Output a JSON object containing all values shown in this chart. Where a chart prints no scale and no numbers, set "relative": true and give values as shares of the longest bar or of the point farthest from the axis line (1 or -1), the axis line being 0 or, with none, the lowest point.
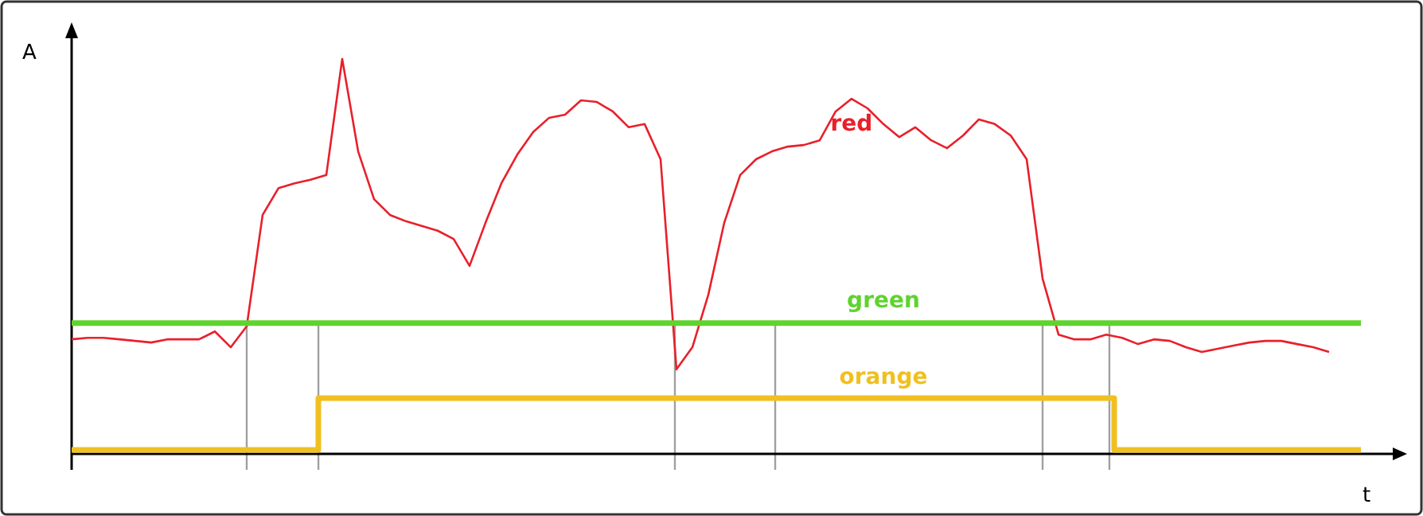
{
  "chart_data": {
    "type": "line",
    "relative": true,
    "xlabel": "t",
    "ylabel": "A",
    "line_style": "solid",
    "categories": [
      null,
      null,
      null,
      null,
      null,
      null,
      null,
      null,
      null,
      null,
      null,
      null,
      null,
      null,
      null,
      null,
      null,
      null,
      null,
      null,
      null,
      null,
      null,
      null,
      null,
      null,
      null,
      null,
      null,
      null,
      null,
      null,
      null,
      null,
      null,
      null,
      null,
      null,
      null,
      null,
      null,
      null,
      null,
      null,
      null,
      null,
      null,
      null,
      null,
      null,
      null,
      null,
      null,
      null,
      null,
      null,
      null,
      null,
      null,
      null,
      null,
      null,
      null,
      null,
      null,
      null,
      null,
      null,
      null,
      null,
      null,
      null,
      null,
      null,
      null,
      null,
      null,
      null,
      null,
      null,
      null,
      null
    ],
    "series": [
      {
        "name": "red",
        "color": "#e8202a",
        "values": [
          0.29,
          0.294,
          0.294,
          0.29,
          0.286,
          0.282,
          0.29,
          0.29,
          0.29,
          0.31,
          0.27,
          0.323,
          0.605,
          0.673,
          0.685,
          0.694,
          0.706,
          1,
          0.766,
          0.645,
          0.605,
          0.589,
          0.577,
          0.565,
          0.544,
          0.476,
          0.585,
          0.685,
          0.758,
          0.815,
          0.851,
          0.859,
          0.895,
          0.891,
          0.867,
          0.827,
          0.835,
          0.746,
          0.214,
          0.27,
          0.403,
          0.585,
          0.706,
          0.746,
          0.766,
          0.778,
          0.782,
          0.794,
          0.867,
          0.899,
          0.875,
          0.835,
          0.802,
          0.827,
          0.794,
          0.774,
          0.806,
          0.847,
          0.835,
          0.806,
          0.746,
          0.444,
          0.302,
          0.29,
          0.29,
          0.302,
          0.294,
          0.278,
          0.29,
          0.286,
          0.27,
          0.258,
          0.266,
          0.274,
          0.282,
          0.286,
          0.286,
          0.278,
          0.27,
          0.258,
          null,
          null
        ]
      },
      {
        "name": "green",
        "color": "#5fd32e",
        "values": [
          0.331,
          0.331,
          0.331,
          0.331,
          0.331,
          0.331,
          0.331,
          0.331,
          0.331,
          0.331,
          0.331,
          0.331,
          0.331,
          0.331,
          0.331,
          0.331,
          0.331,
          0.331,
          0.331,
          0.331,
          0.331,
          0.331,
          0.331,
          0.331,
          0.331,
          0.331,
          0.331,
          0.331,
          0.331,
          0.331,
          0.331,
          0.331,
          0.331,
          0.331,
          0.331,
          0.331,
          0.331,
          0.331,
          0.331,
          0.331,
          0.331,
          0.331,
          0.331,
          0.331,
          0.331,
          0.331,
          0.331,
          0.331,
          0.331,
          0.331,
          0.331,
          0.331,
          0.331,
          0.331,
          0.331,
          0.331,
          0.331,
          0.331,
          0.331,
          0.331,
          0.331,
          0.331,
          0.331,
          0.331,
          0.331,
          0.331,
          0.331,
          0.331,
          0.331,
          0.331,
          0.331,
          0.331,
          0.331,
          0.331,
          0.331,
          0.331,
          0.331,
          0.331,
          0.331,
          0.331,
          0.331,
          0.331
        ]
      },
      {
        "name": "orange",
        "type": "step",
        "color": "#f0c020",
        "values": [
          0.01,
          0.01,
          0.01,
          0.01,
          0.01,
          0.01,
          0.01,
          0.01,
          0.01,
          0.01,
          0.01,
          0.01,
          0.01,
          0.01,
          0.01,
          0.01,
          0.141,
          0.141,
          0.141,
          0.141,
          0.141,
          0.141,
          0.141,
          0.141,
          0.141,
          0.141,
          0.141,
          0.141,
          0.141,
          0.141,
          0.141,
          0.141,
          0.141,
          0.141,
          0.141,
          0.141,
          0.141,
          0.141,
          0.141,
          0.141,
          0.141,
          0.141,
          0.141,
          0.141,
          0.141,
          0.141,
          0.141,
          0.141,
          0.141,
          0.141,
          0.141,
          0.141,
          0.141,
          0.141,
          0.141,
          0.141,
          0.141,
          0.141,
          0.141,
          0.141,
          0.141,
          0.141,
          0.141,
          0.141,
          0.141,
          0.141,
          0.01,
          0.01,
          0.01,
          0.01,
          0.01,
          0.01,
          0.01,
          0.01,
          0.01,
          0.01,
          0.01,
          0.01,
          0.01,
          0.01,
          0.01,
          0.01
        ]
      }
    ]
  }
}
